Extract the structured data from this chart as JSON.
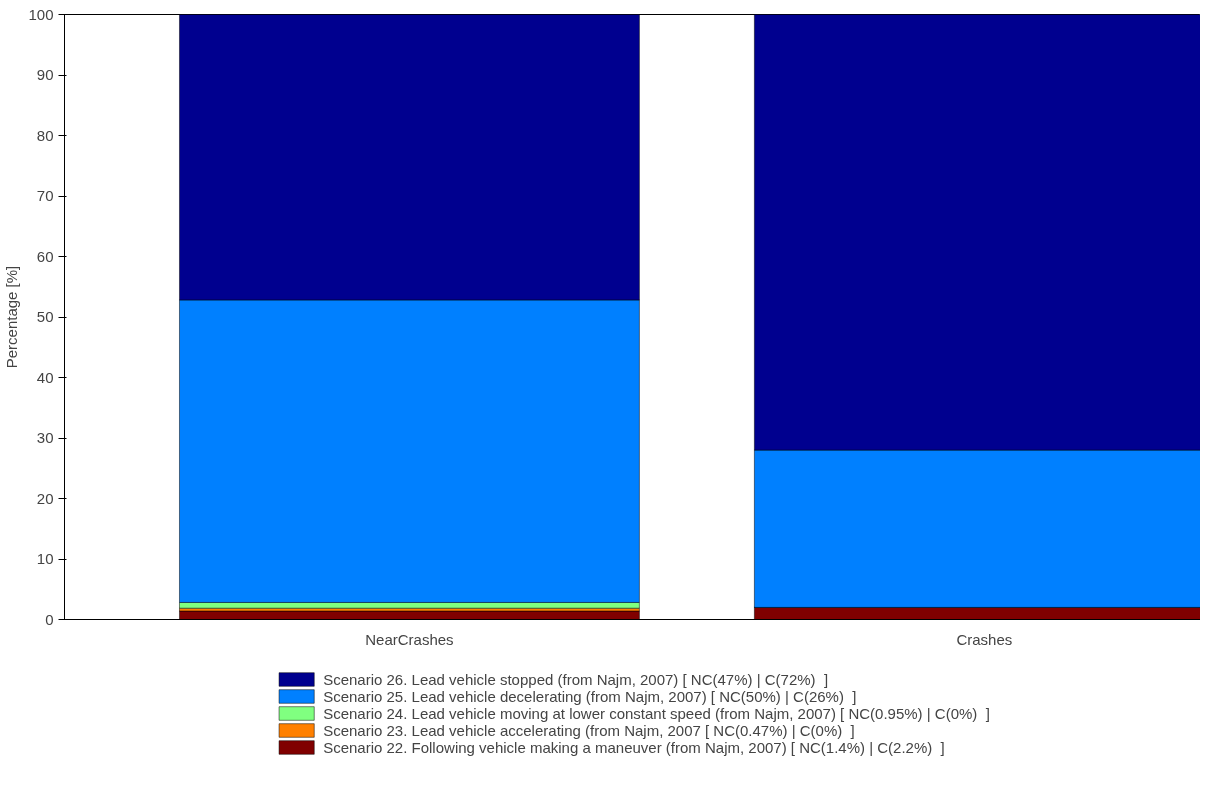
{
  "chart_data": {
    "type": "bar",
    "stacked": true,
    "ylabel": "Percentage [%]",
    "categories": [
      "NearCrashes",
      "Crashes"
    ],
    "ylim": [
      0,
      100
    ],
    "yticks": [
      0,
      10,
      20,
      30,
      40,
      50,
      60,
      70,
      80,
      90,
      100
    ],
    "grid": false,
    "legend": "bottom",
    "series": [
      {
        "name": "Scenario 22. Following vehicle making a maneuver (from Najm, 2007) [ NC(1.4%) | C(2.2%)  ]",
        "color": "#800000",
        "values": [
          1.4,
          2.0
        ]
      },
      {
        "name": "Scenario 23. Lead vehicle accelerating (from Najm, 2007 [ NC(0.47%) | C(0%)  ]",
        "color": "#ff8000",
        "values": [
          0.47,
          0
        ]
      },
      {
        "name": "Scenario 24. Lead vehicle moving at lower constant speed (from Najm, 2007) [ NC(0.95%) | C(0%)  ]",
        "color": "#80ff80",
        "values": [
          0.95,
          0
        ]
      },
      {
        "name": "Scenario 25. Lead vehicle decelerating (from Najm, 2007) [ NC(50%) | C(26%)  ]",
        "color": "#0080ff",
        "values": [
          50,
          26
        ]
      },
      {
        "name": "Scenario 26. Lead vehicle stopped (from Najm, 2007) [ NC(47%) | C(72%)  ]",
        "color": "#00008f",
        "values": [
          47.2,
          72
        ]
      }
    ]
  }
}
